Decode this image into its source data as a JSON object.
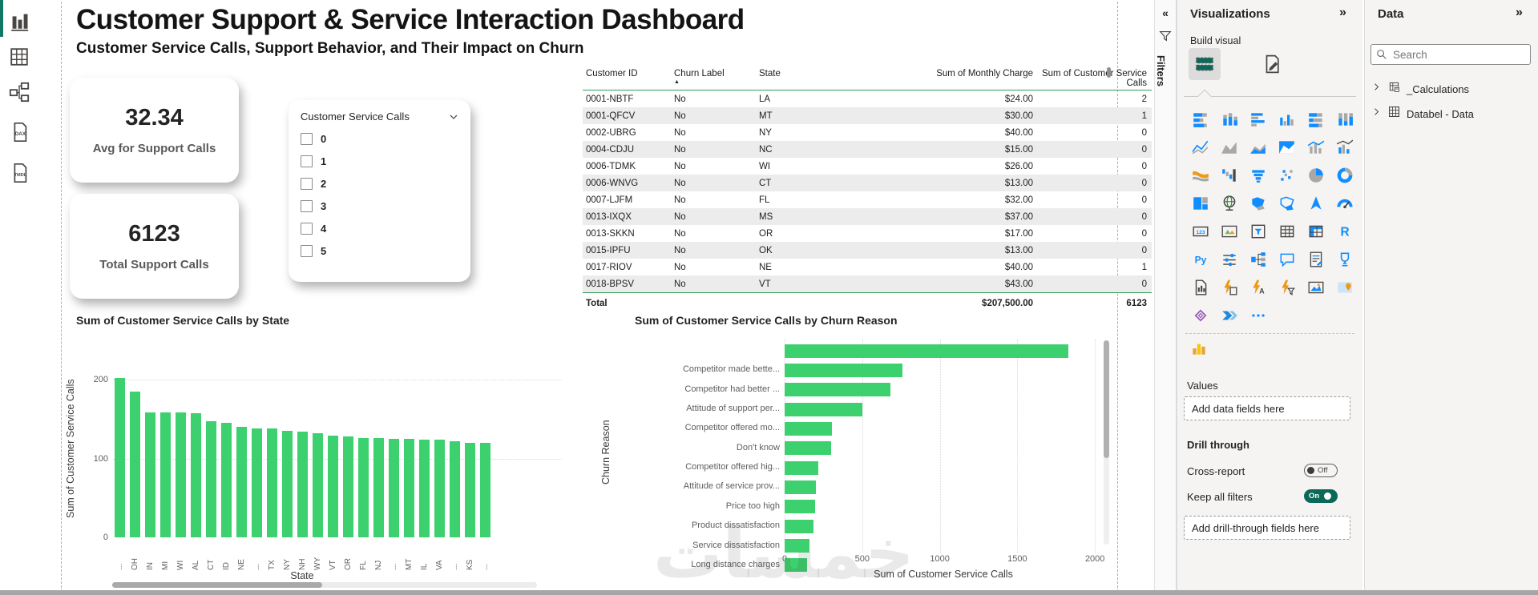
{
  "left_nav": {
    "items": [
      {
        "name": "report-view",
        "glyph": "report"
      },
      {
        "name": "table-view",
        "glyph": "grid"
      },
      {
        "name": "model-view",
        "glyph": "model"
      },
      {
        "name": "dax-query-view",
        "glyph": "dax"
      },
      {
        "name": "tmdl-view",
        "glyph": "tmdl"
      }
    ]
  },
  "canvas": {
    "title": "Customer Support & Service Interaction Dashboard",
    "subtitle": "Customer Service Calls, Support Behavior, and Their Impact on Churn",
    "kpis": [
      {
        "value": "32.34",
        "label": "Avg for Support Calls"
      },
      {
        "value": "6123",
        "label": "Total Support Calls"
      }
    ],
    "slicer": {
      "title": "Customer Service Calls",
      "options": [
        "0",
        "1",
        "2",
        "3",
        "4",
        "5"
      ]
    },
    "table": {
      "columns": [
        "Customer ID",
        "Churn Label",
        "State",
        "Sum of Monthly Charge",
        "Sum of Customer Service Calls"
      ],
      "sorted_column": "Churn Label",
      "rows": [
        [
          "0001-NBTF",
          "No",
          "LA",
          "$24.00",
          "2"
        ],
        [
          "0001-QFCV",
          "No",
          "MT",
          "$30.00",
          "1"
        ],
        [
          "0002-UBRG",
          "No",
          "NY",
          "$40.00",
          "0"
        ],
        [
          "0004-CDJU",
          "No",
          "NC",
          "$15.00",
          "0"
        ],
        [
          "0006-TDMK",
          "No",
          "WI",
          "$26.00",
          "0"
        ],
        [
          "0006-WNVG",
          "No",
          "CT",
          "$13.00",
          "0"
        ],
        [
          "0007-LJFM",
          "No",
          "FL",
          "$32.00",
          "0"
        ],
        [
          "0013-IXQX",
          "No",
          "MS",
          "$37.00",
          "0"
        ],
        [
          "0013-SKKN",
          "No",
          "OR",
          "$17.00",
          "0"
        ],
        [
          "0015-IPFU",
          "No",
          "OK",
          "$13.00",
          "0"
        ],
        [
          "0017-RIOV",
          "No",
          "NE",
          "$40.00",
          "1"
        ],
        [
          "0018-BPSV",
          "No",
          "VT",
          "$43.00",
          "0"
        ]
      ],
      "total_row": {
        "label": "Total",
        "monthly_charge": "$207,500.00",
        "service_calls": "6123"
      }
    },
    "watermark": "خمسات"
  },
  "chart_data": [
    {
      "type": "bar",
      "title": "Sum of Customer Service Calls by State",
      "xlabel": "State",
      "ylabel": "Sum of Customer Service Calls",
      "ylim": [
        0,
        200
      ],
      "yticks": [
        0,
        100,
        200
      ],
      "grid": true,
      "categories": [
        "...",
        "OH",
        "IN",
        "MI",
        "WI",
        "AL",
        "CT",
        "ID",
        "NE",
        "...",
        "TX",
        "NY",
        "NH",
        "WY",
        "VT",
        "OR",
        "FL",
        "NJ",
        "...",
        "MT",
        "IL",
        "VA",
        "...",
        "KS",
        "..."
      ],
      "values": [
        202,
        185,
        158,
        158,
        158,
        157,
        147,
        145,
        140,
        138,
        138,
        135,
        134,
        132,
        129,
        128,
        126,
        126,
        125,
        125,
        124,
        124,
        122,
        120,
        120
      ],
      "bar_color": "#3DD06E"
    },
    {
      "type": "bar-horizontal",
      "title": "Sum of Customer Service Calls by Churn Reason",
      "xlabel": "Sum of Customer Service Calls",
      "ylabel": "Churn Reason",
      "xlim": [
        0,
        2000
      ],
      "xticks": [
        0,
        500,
        1000,
        1500,
        2000
      ],
      "grid": true,
      "categories": [
        "",
        "Competitor made bette...",
        "Competitor had better ...",
        "Attitude of support per...",
        "Competitor offered mo...",
        "Don't know",
        "Competitor offered hig...",
        "Attitude of service prov...",
        "Price too high",
        "Product dissatisfaction",
        "Service dissatisfaction",
        "Long distance charges"
      ],
      "values": [
        1830,
        760,
        680,
        500,
        305,
        300,
        215,
        200,
        195,
        185,
        160,
        145
      ],
      "bar_color": "#3DD06E"
    }
  ],
  "filters_pane": {
    "label": "Filters"
  },
  "viz_pane": {
    "title": "Visualizations",
    "build_visual": "Build visual",
    "values_section": "Values",
    "values_placeholder": "Add data fields here",
    "drill_section": "Drill through",
    "cross_report": "Cross-report",
    "cross_report_state": "Off",
    "keep_filters": "Keep all filters",
    "keep_filters_state": "On",
    "drill_placeholder": "Add drill-through fields here",
    "icons": [
      "stacked-bar-chart",
      "stacked-column-chart",
      "clustered-bar-chart",
      "clustered-column-chart",
      "100-stacked-bar-chart",
      "100-stacked-column-chart",
      "line-chart",
      "area-chart",
      "stacked-area-chart",
      "100-stacked-area-chart",
      "line-and-stacked-column-chart",
      "line-and-clustered-column-chart",
      "ribbon-chart",
      "waterfall-chart",
      "funnel-chart",
      "scatter-chart",
      "pie-chart",
      "donut-chart",
      "treemap",
      "map",
      "filled-map",
      "shape-map",
      "azure-map",
      "gauge",
      "card",
      "kpi",
      "slicer",
      "table",
      "matrix",
      "r-script-visual",
      "python-visual",
      "smart-filter",
      "decomposition-tree",
      "q-and-a",
      "smart-narrative",
      "metrics",
      "paginated-report",
      "power-apps-visual",
      "power-automate-visual",
      "dynamic-filter",
      "image-visual",
      "arcgis-map",
      "custom-diamond-visual",
      "power-automate",
      "more-visuals"
    ],
    "custom_icon": "custom-visual-bar"
  },
  "data_pane": {
    "title": "Data",
    "search_placeholder": "Search",
    "tables": [
      "_Calculations",
      "Databel - Data"
    ]
  },
  "colors": {
    "green": "#3DD06E",
    "teal_accent": "#117865",
    "toggle_on": "#0C695A",
    "table_grid_green": "#2e9e5b",
    "viz_blue": "#118DFF"
  }
}
